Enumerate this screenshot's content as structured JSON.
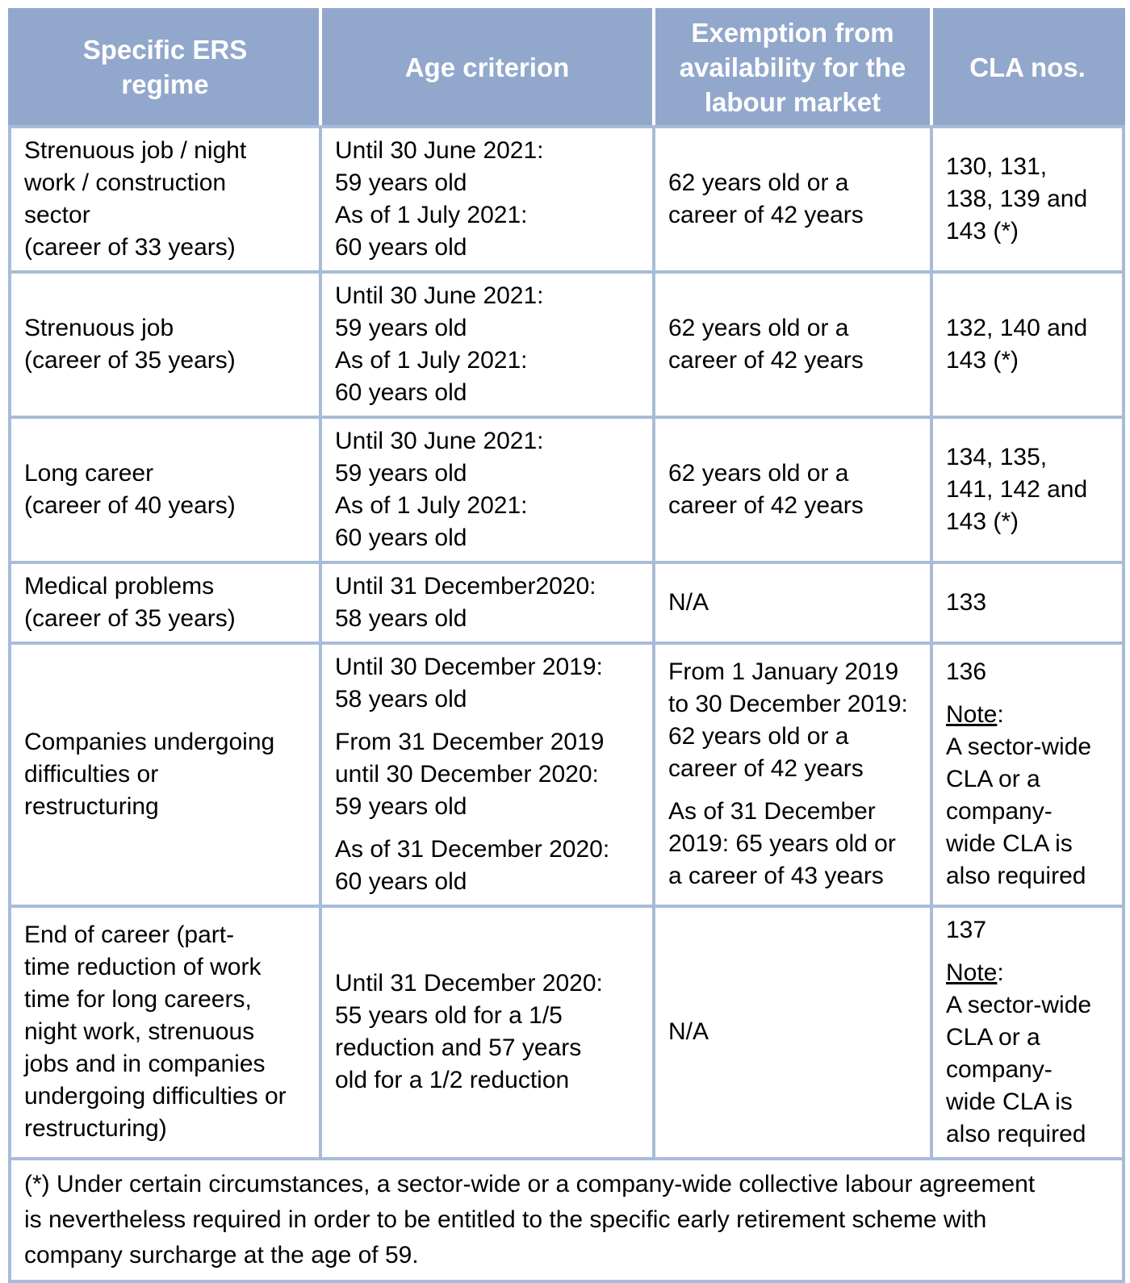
{
  "header": {
    "columns": [
      "Specific ERS\nregime",
      "Age criterion",
      "Exemption from\navailability for the\nlabour market",
      "CLA nos."
    ]
  },
  "rows": [
    {
      "regime": [
        "Strenuous job / night\nwork / construction\nsector\n(career of 33 years)"
      ],
      "age": [
        "Until 30 June 2021:\n59 years old\nAs of 1 July 2021:\n60 years old"
      ],
      "exemption": [
        "62 years old or a\ncareer of 42 years"
      ],
      "cla": [
        "130, 131,\n138, 139 and\n143 (*)"
      ]
    },
    {
      "regime": [
        "Strenuous job\n(career of 35 years)"
      ],
      "age": [
        "Until 30 June 2021:\n59 years old\nAs of 1 July 2021:\n60 years old"
      ],
      "exemption": [
        "62 years old or a\ncareer of 42 years"
      ],
      "cla": [
        "132, 140 and\n143 (*)"
      ]
    },
    {
      "regime": [
        "Long career\n(career of 40 years)"
      ],
      "age": [
        "Until 30 June 2021:\n59 years old\nAs of 1 July 2021:\n60 years old"
      ],
      "exemption": [
        "62 years old or a\ncareer of 42 years"
      ],
      "cla": [
        "134, 135,\n141, 142 and\n143 (*)"
      ]
    },
    {
      "regime": [
        "Medical problems\n(career of 35 years)"
      ],
      "age": [
        "Until 31 December2020:\n58 years old"
      ],
      "exemption": [
        "N/A"
      ],
      "cla": [
        "133"
      ]
    },
    {
      "regime": [
        "Companies undergoing\ndifficulties or\nrestructuring"
      ],
      "age": [
        "Until 30 December 2019:\n58 years old",
        "From 31 December 2019\nuntil 30 December 2020:\n59 years old",
        "As of 31 December 2020:\n60 years old"
      ],
      "exemption": [
        "From 1 January 2019\nto 30 December 2019:\n62 years old or a\ncareer of 42 years",
        "As of 31 December\n2019: 65 years old or\na career of 43 years"
      ],
      "cla": [
        "136",
        {
          "underlined": "Note",
          "rest": ":\nA sector-wide\nCLA or a\ncompany-\nwide CLA is\nalso required"
        }
      ]
    },
    {
      "regime": [
        "End of career (part-\ntime reduction of work\ntime for long careers,\nnight work, strenuous\njobs and in companies\nundergoing difficulties or\nrestructuring)"
      ],
      "age": [
        "Until 31 December 2020:\n55 years old for a 1/5\nreduction and 57 years\nold for a 1/2 reduction"
      ],
      "exemption": [
        "N/A"
      ],
      "cla": [
        "137",
        {
          "underlined": "Note",
          "rest": ":\nA sector-wide\nCLA or a\ncompany-\nwide CLA is\nalso required"
        }
      ]
    }
  ],
  "footnote": "(*) Under certain circumstances, a sector-wide or a company-wide collective labour agreement\nis nevertheless required in order to be entitled to the specific early retirement scheme with\ncompany surcharge at the age of 59.",
  "colors": {
    "header_bg": "#92a7cc",
    "header_text": "#ffffff",
    "border": "#a8bcd8",
    "body_text": "#000000"
  }
}
